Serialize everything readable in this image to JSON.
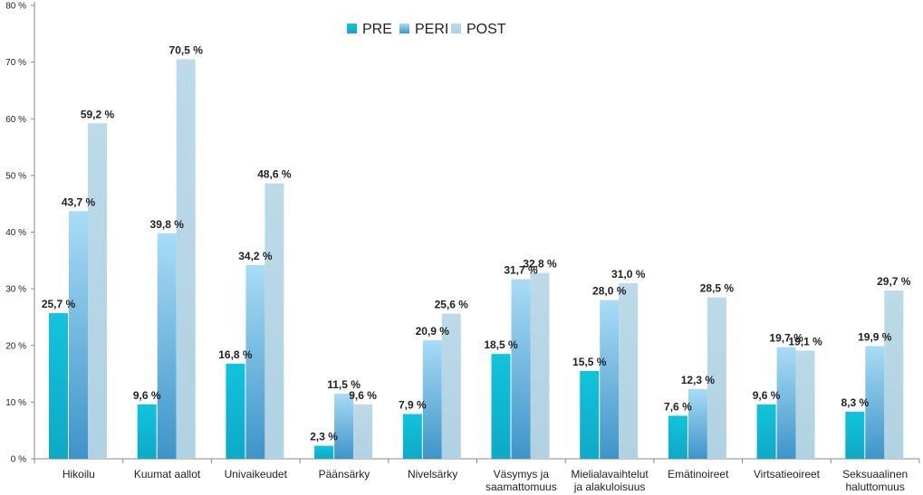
{
  "chart_data": {
    "type": "bar",
    "categories": [
      [
        "Hikoilu"
      ],
      [
        "Kuumat aallot"
      ],
      [
        "Univaikeudet"
      ],
      [
        "Päänsärky"
      ],
      [
        "Nivelsärky"
      ],
      [
        "Väsymys ja",
        "saamattomuus"
      ],
      [
        "Mielialavaihtelut",
        "ja alakuloisuus"
      ],
      [
        "Emätinoireet"
      ],
      [
        "Virtsatieoireet"
      ],
      [
        "Seksuaalinen",
        "haluttomuus"
      ]
    ],
    "series": [
      {
        "name": "PRE",
        "color": "#14b8d4",
        "values": [
          25.7,
          9.6,
          16.8,
          2.3,
          7.9,
          18.5,
          15.5,
          7.6,
          9.6,
          8.3
        ],
        "labels": [
          "25,7 %",
          "9,6 %",
          "16,8 %",
          "2,3 %",
          "7,9 %",
          "18,5 %",
          "15,5 %",
          "7,6 %",
          "9,6 %",
          "8,3 %"
        ]
      },
      {
        "name": "PERI",
        "color": "#5aaee0",
        "values": [
          43.7,
          39.8,
          34.2,
          11.5,
          20.9,
          31.7,
          28.0,
          12.3,
          19.7,
          19.9
        ],
        "labels": [
          "43,7 %",
          "39,8 %",
          "34,2 %",
          "11,5 %",
          "20,9 %",
          "31,7 %",
          "28,0 %",
          "12,3 %",
          "19,7 %",
          "19,9 %"
        ]
      },
      {
        "name": "POST",
        "color": "#b8d8e6",
        "values": [
          59.2,
          70.5,
          48.6,
          9.6,
          25.6,
          32.8,
          31.0,
          28.5,
          19.1,
          29.7
        ],
        "labels": [
          "59,2 %",
          "70,5 %",
          "48,6 %",
          "9,6 %",
          "25,6 %",
          "32,8 %",
          "31,0 %",
          "28,5 %",
          "19,1 %",
          "29,7 %"
        ]
      }
    ],
    "y_ticks": [
      "0 %",
      "10 %",
      "20 %",
      "30 %",
      "40 %",
      "50 %",
      "60 %",
      "70 %",
      "80 %"
    ],
    "ylim": [
      0,
      80
    ],
    "grid": false,
    "legend_position": "top"
  }
}
